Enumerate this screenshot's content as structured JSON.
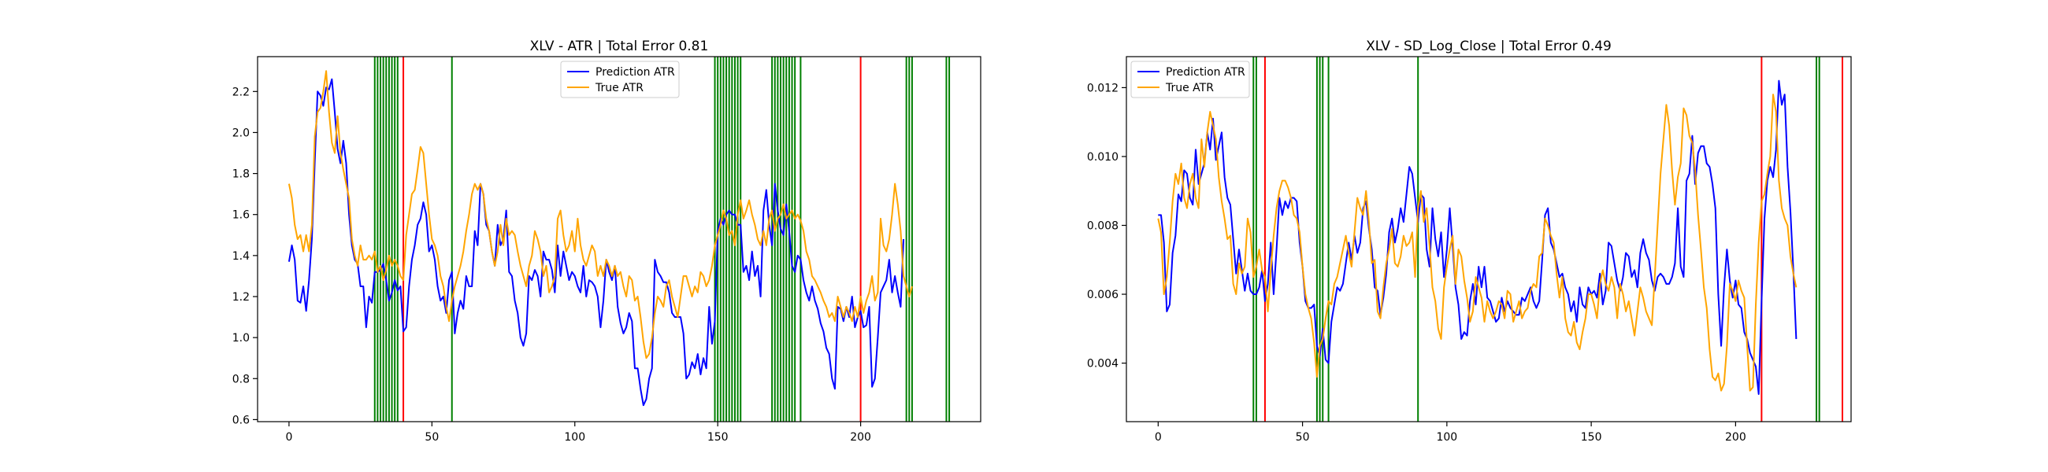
{
  "colors": {
    "prediction": "#0000ff",
    "true": "#ffa500",
    "vline_green": "#008000",
    "vline_red": "#ff0000"
  },
  "chart_data": [
    {
      "type": "line",
      "title": "XLV - ATR | Total Error 0.81",
      "xlabel": "",
      "ylabel": "",
      "xlim": [
        -11,
        242
      ],
      "ylim": [
        0.59,
        2.37
      ],
      "xticks": [
        0,
        50,
        100,
        150,
        200
      ],
      "yticks": [
        0.6,
        0.8,
        1.0,
        1.2,
        1.4,
        1.6,
        1.8,
        2.0,
        2.2
      ],
      "ytick_labels": [
        "0.6",
        "0.8",
        "1.0",
        "1.2",
        "1.4",
        "1.6",
        "1.8",
        "2.0",
        "2.2"
      ],
      "grid": false,
      "legend": "top-center",
      "series": [
        {
          "name": "Prediction ATR",
          "color": "blue",
          "y": [
            1.37,
            1.45,
            1.38,
            1.18,
            1.17,
            1.25,
            1.13,
            1.28,
            1.48,
            1.85,
            2.2,
            2.18,
            2.13,
            2.22,
            2.21,
            2.26,
            2.1,
            1.92,
            1.85,
            1.96,
            1.85,
            1.6,
            1.45,
            1.38,
            1.36,
            1.25,
            1.25,
            1.05,
            1.2,
            1.17,
            1.32,
            1.32,
            1.33,
            1.36,
            1.28,
            1.18,
            1.22,
            1.28,
            1.23,
            1.25,
            1.03,
            1.05,
            1.25,
            1.38,
            1.45,
            1.55,
            1.58,
            1.66,
            1.6,
            1.42,
            1.45,
            1.38,
            1.25,
            1.18,
            1.2,
            1.12,
            1.28,
            1.32,
            1.02,
            1.12,
            1.18,
            1.14,
            1.3,
            1.25,
            1.25,
            1.52,
            1.45,
            1.75,
            1.7,
            1.55,
            1.52,
            1.42,
            1.35,
            1.55,
            1.45,
            1.48,
            1.62,
            1.32,
            1.3,
            1.18,
            1.12,
            1.0,
            0.96,
            1.02,
            1.3,
            1.28,
            1.33,
            1.3,
            1.2,
            1.42,
            1.38,
            1.38,
            1.33,
            1.22,
            1.45,
            1.3,
            1.42,
            1.35,
            1.28,
            1.32,
            1.3,
            1.25,
            1.22,
            1.35,
            1.2,
            1.28,
            1.27,
            1.25,
            1.2,
            1.05,
            1.18,
            1.38,
            1.32,
            1.28,
            1.35,
            1.15,
            1.07,
            1.02,
            1.05,
            1.12,
            1.08,
            0.85,
            0.85,
            0.75,
            0.67,
            0.7,
            0.8,
            0.85,
            1.38,
            1.32,
            1.3,
            1.27,
            1.27,
            1.22,
            1.12,
            1.1,
            1.1,
            1.1,
            1.02,
            0.8,
            0.82,
            0.88,
            0.85,
            0.92,
            0.82,
            0.9,
            0.85,
            1.15,
            0.97,
            1.08,
            1.52,
            1.58,
            1.55,
            1.6,
            1.62,
            1.6,
            1.6,
            1.55,
            1.55,
            1.32,
            1.35,
            1.28,
            1.42,
            1.3,
            1.35,
            1.2,
            1.62,
            1.72,
            1.55,
            1.45,
            1.75,
            1.62,
            1.53,
            1.5,
            1.65,
            1.52,
            1.35,
            1.32,
            1.4,
            1.38,
            1.28,
            1.22,
            1.18,
            1.25,
            1.18,
            1.14,
            1.07,
            1.03,
            0.95,
            0.92,
            0.8,
            0.75,
            1.15,
            1.14,
            1.08,
            1.15,
            1.1,
            1.2,
            1.05,
            1.1,
            1.13,
            1.05,
            1.06,
            1.15,
            0.76,
            0.8,
            1.0,
            1.22,
            1.25,
            1.28,
            1.38,
            1.22,
            1.3,
            1.22,
            1.15,
            1.48
          ]
        },
        {
          "name": "True ATR",
          "color": "orange",
          "y": [
            1.75,
            1.68,
            1.55,
            1.48,
            1.5,
            1.42,
            1.5,
            1.42,
            1.55,
            1.98,
            2.1,
            2.12,
            2.2,
            2.3,
            2.1,
            1.95,
            1.9,
            2.08,
            1.9,
            1.82,
            1.75,
            1.68,
            1.48,
            1.4,
            1.35,
            1.45,
            1.38,
            1.38,
            1.4,
            1.38,
            1.42,
            1.32,
            1.35,
            1.28,
            1.33,
            1.4,
            1.35,
            1.38,
            1.35,
            1.3,
            1.28,
            1.5,
            1.6,
            1.7,
            1.72,
            1.82,
            1.93,
            1.9,
            1.75,
            1.6,
            1.48,
            1.45,
            1.4,
            1.3,
            1.25,
            1.15,
            1.08,
            1.18,
            1.25,
            1.3,
            1.35,
            1.42,
            1.52,
            1.6,
            1.7,
            1.75,
            1.72,
            1.75,
            1.7,
            1.58,
            1.52,
            1.42,
            1.35,
            1.42,
            1.55,
            1.45,
            1.58,
            1.5,
            1.52,
            1.5,
            1.42,
            1.35,
            1.3,
            1.25,
            1.35,
            1.4,
            1.52,
            1.48,
            1.42,
            1.3,
            1.35,
            1.22,
            1.25,
            1.3,
            1.58,
            1.62,
            1.5,
            1.42,
            1.45,
            1.52,
            1.42,
            1.58,
            1.45,
            1.38,
            1.35,
            1.4,
            1.45,
            1.42,
            1.3,
            1.35,
            1.3,
            1.38,
            1.35,
            1.3,
            1.35,
            1.3,
            1.32,
            1.25,
            1.2,
            1.3,
            1.28,
            1.18,
            1.2,
            1.1,
            0.98,
            0.9,
            0.92,
            1.0,
            1.12,
            1.2,
            1.18,
            1.15,
            1.25,
            1.28,
            1.2,
            1.15,
            1.1,
            1.2,
            1.3,
            1.3,
            1.25,
            1.2,
            1.25,
            1.22,
            1.32,
            1.3,
            1.25,
            1.28,
            1.35,
            1.45,
            1.5,
            1.55,
            1.62,
            1.58,
            1.5,
            1.52,
            1.45,
            1.6,
            1.67,
            1.58,
            1.62,
            1.67,
            1.6,
            1.55,
            1.48,
            1.45,
            1.52,
            1.45,
            1.58,
            1.62,
            1.52,
            1.58,
            1.6,
            1.65,
            1.58,
            1.6,
            1.62,
            1.58,
            1.6,
            1.57,
            1.52,
            1.42,
            1.38,
            1.3,
            1.28,
            1.25,
            1.22,
            1.18,
            1.15,
            1.1,
            1.12,
            1.08,
            1.2,
            1.15,
            1.1,
            1.15,
            1.12,
            1.08,
            1.15,
            1.1,
            1.2,
            1.12,
            1.18,
            1.22,
            1.3,
            1.18,
            1.22,
            1.58,
            1.45,
            1.42,
            1.48,
            1.6,
            1.75,
            1.65,
            1.52,
            1.3,
            1.25,
            1.2,
            1.25
          ]
        }
      ],
      "vlines_green": [
        30,
        31,
        32,
        33,
        34,
        35,
        36,
        37,
        38,
        57,
        149,
        150,
        151,
        152,
        153,
        154,
        155,
        156,
        157,
        158,
        169,
        170,
        171,
        172,
        173,
        174,
        175,
        176,
        177,
        179,
        216,
        217,
        218,
        230,
        231
      ],
      "vlines_red": [
        40,
        200
      ]
    },
    {
      "type": "line",
      "title": "XLV - SD_Log_Close | Total Error 0.49",
      "xlabel": "",
      "ylabel": "",
      "xlim": [
        -11,
        240
      ],
      "ylim": [
        0.0023,
        0.0129
      ],
      "xticks": [
        0,
        50,
        100,
        150,
        200
      ],
      "yticks": [
        0.004,
        0.006,
        0.008,
        0.01,
        0.012
      ],
      "ytick_labels": [
        "0.004",
        "0.006",
        "0.008",
        "0.010",
        "0.012"
      ],
      "grid": false,
      "legend": "top-left",
      "series": [
        {
          "name": "Prediction ATR",
          "color": "blue",
          "y": [
            0.0083,
            0.0083,
            0.0075,
            0.0055,
            0.0057,
            0.0072,
            0.0077,
            0.0089,
            0.0087,
            0.0096,
            0.0095,
            0.0088,
            0.0086,
            0.0102,
            0.0092,
            0.0095,
            0.0098,
            0.0107,
            0.0102,
            0.0111,
            0.0099,
            0.0103,
            0.0107,
            0.0094,
            0.0088,
            0.0086,
            0.0076,
            0.0066,
            0.0073,
            0.0067,
            0.0061,
            0.0066,
            0.0061,
            0.006,
            0.006,
            0.0062,
            0.0067,
            0.0058,
            0.0063,
            0.0075,
            0.006,
            0.0073,
            0.0088,
            0.0083,
            0.0087,
            0.0085,
            0.0088,
            0.0088,
            0.0087,
            0.0075,
            0.0068,
            0.0058,
            0.0056,
            0.0056,
            0.0057,
            0.0045,
            0.0042,
            0.005,
            0.0041,
            0.004,
            0.0052,
            0.0057,
            0.0062,
            0.0061,
            0.0063,
            0.0069,
            0.0075,
            0.007,
            0.0077,
            0.0072,
            0.0075,
            0.0085,
            0.0087,
            0.0079,
            0.0073,
            0.0062,
            0.0061,
            0.0054,
            0.0059,
            0.0066,
            0.0078,
            0.0082,
            0.0075,
            0.0079,
            0.0085,
            0.0081,
            0.0089,
            0.0097,
            0.0095,
            0.0088,
            0.0081,
            0.0089,
            0.0088,
            0.0073,
            0.0068,
            0.0085,
            0.0076,
            0.0071,
            0.0078,
            0.0065,
            0.0073,
            0.0085,
            0.0074,
            0.0062,
            0.0057,
            0.0047,
            0.0049,
            0.0048,
            0.0058,
            0.0063,
            0.0057,
            0.0068,
            0.0062,
            0.0068,
            0.0059,
            0.0058,
            0.0055,
            0.0052,
            0.0053,
            0.0059,
            0.0055,
            0.0058,
            0.0056,
            0.0055,
            0.0054,
            0.0054,
            0.0059,
            0.0058,
            0.006,
            0.0062,
            0.0058,
            0.0056,
            0.0058,
            0.007,
            0.0083,
            0.0085,
            0.0075,
            0.0073,
            0.0069,
            0.0065,
            0.0066,
            0.0062,
            0.006,
            0.0055,
            0.0058,
            0.0052,
            0.0062,
            0.0057,
            0.0056,
            0.0062,
            0.006,
            0.0061,
            0.0059,
            0.0066,
            0.0057,
            0.0061,
            0.0075,
            0.0074,
            0.0069,
            0.0064,
            0.0061,
            0.0065,
            0.0072,
            0.0071,
            0.0065,
            0.0067,
            0.0062,
            0.0072,
            0.0076,
            0.0072,
            0.007,
            0.0064,
            0.0061,
            0.0065,
            0.0066,
            0.0065,
            0.0063,
            0.0063,
            0.0065,
            0.0069,
            0.0085,
            0.0068,
            0.0065,
            0.0093,
            0.0095,
            0.0106,
            0.0092,
            0.0101,
            0.0103,
            0.0103,
            0.0098,
            0.0097,
            0.0092,
            0.0085,
            0.006,
            0.0045,
            0.0062,
            0.0073,
            0.0064,
            0.0059,
            0.0064,
            0.0057,
            0.0056,
            0.0049,
            0.0047,
            0.0043,
            0.0041,
            0.0039,
            0.0031,
            0.0058,
            0.0082,
            0.0093,
            0.0097,
            0.0094,
            0.0102,
            0.0122,
            0.0115,
            0.0118,
            0.0097,
            0.0084,
            0.0067,
            0.0047
          ]
        },
        {
          "name": "True ATR",
          "color": "orange",
          "y": [
            0.0082,
            0.0078,
            0.006,
            0.0065,
            0.0075,
            0.0087,
            0.0095,
            0.0092,
            0.0098,
            0.0088,
            0.0085,
            0.0092,
            0.0095,
            0.0088,
            0.0085,
            0.0105,
            0.0097,
            0.0107,
            0.0113,
            0.0109,
            0.0105,
            0.0094,
            0.0087,
            0.0082,
            0.0076,
            0.0077,
            0.0063,
            0.006,
            0.0069,
            0.0066,
            0.0068,
            0.0082,
            0.0078,
            0.0065,
            0.0068,
            0.0073,
            0.0067,
            0.0065,
            0.0055,
            0.0067,
            0.0077,
            0.0085,
            0.009,
            0.0093,
            0.0093,
            0.0091,
            0.0088,
            0.0083,
            0.0082,
            0.0078,
            0.0068,
            0.006,
            0.0056,
            0.0053,
            0.0046,
            0.0036,
            0.0045,
            0.0047,
            0.0053,
            0.0058,
            0.0057,
            0.0063,
            0.0065,
            0.0069,
            0.0073,
            0.0077,
            0.0072,
            0.0068,
            0.0078,
            0.0088,
            0.0085,
            0.0083,
            0.009,
            0.0081,
            0.0069,
            0.007,
            0.0055,
            0.0053,
            0.0062,
            0.0069,
            0.0073,
            0.0079,
            0.0069,
            0.0068,
            0.0071,
            0.0077,
            0.0074,
            0.0075,
            0.0078,
            0.0065,
            0.0085,
            0.009,
            0.0081,
            0.0085,
            0.0074,
            0.0062,
            0.0058,
            0.005,
            0.0047,
            0.0062,
            0.0068,
            0.0073,
            0.0077,
            0.0063,
            0.0073,
            0.0071,
            0.0064,
            0.0059,
            0.0052,
            0.0055,
            0.0065,
            0.0062,
            0.0059,
            0.0052,
            0.0058,
            0.0055,
            0.0053,
            0.0055,
            0.0058,
            0.0057,
            0.0053,
            0.0061,
            0.006,
            0.0052,
            0.0055,
            0.0058,
            0.0053,
            0.0055,
            0.0056,
            0.0061,
            0.0063,
            0.0062,
            0.0071,
            0.0072,
            0.0082,
            0.008,
            0.0077,
            0.0075,
            0.0066,
            0.0059,
            0.0065,
            0.0053,
            0.0049,
            0.0048,
            0.0052,
            0.0046,
            0.0044,
            0.0049,
            0.0053,
            0.006,
            0.006,
            0.0057,
            0.0053,
            0.0063,
            0.0067,
            0.0063,
            0.0061,
            0.0065,
            0.0062,
            0.0053,
            0.0063,
            0.006,
            0.0055,
            0.0058,
            0.0053,
            0.0048,
            0.0055,
            0.0062,
            0.0059,
            0.0055,
            0.0053,
            0.0051,
            0.0065,
            0.008,
            0.0095,
            0.0105,
            0.0115,
            0.0109,
            0.0096,
            0.0086,
            0.0094,
            0.0098,
            0.0114,
            0.0112,
            0.0106,
            0.0104,
            0.0096,
            0.0083,
            0.0073,
            0.0062,
            0.0056,
            0.0044,
            0.0036,
            0.0035,
            0.0037,
            0.0032,
            0.0034,
            0.0045,
            0.0063,
            0.0061,
            0.0058,
            0.0064,
            0.0061,
            0.0059,
            0.0045,
            0.0032,
            0.0033,
            0.0057,
            0.0075,
            0.0087,
            0.0089,
            0.0095,
            0.01,
            0.0118,
            0.0113,
            0.0093,
            0.0085,
            0.0082,
            0.008,
            0.0071,
            0.0066,
            0.0062
          ]
        }
      ],
      "vlines_green": [
        33,
        34,
        55,
        56,
        57,
        59,
        90,
        228,
        229
      ],
      "vlines_red": [
        37,
        209,
        237
      ]
    }
  ]
}
